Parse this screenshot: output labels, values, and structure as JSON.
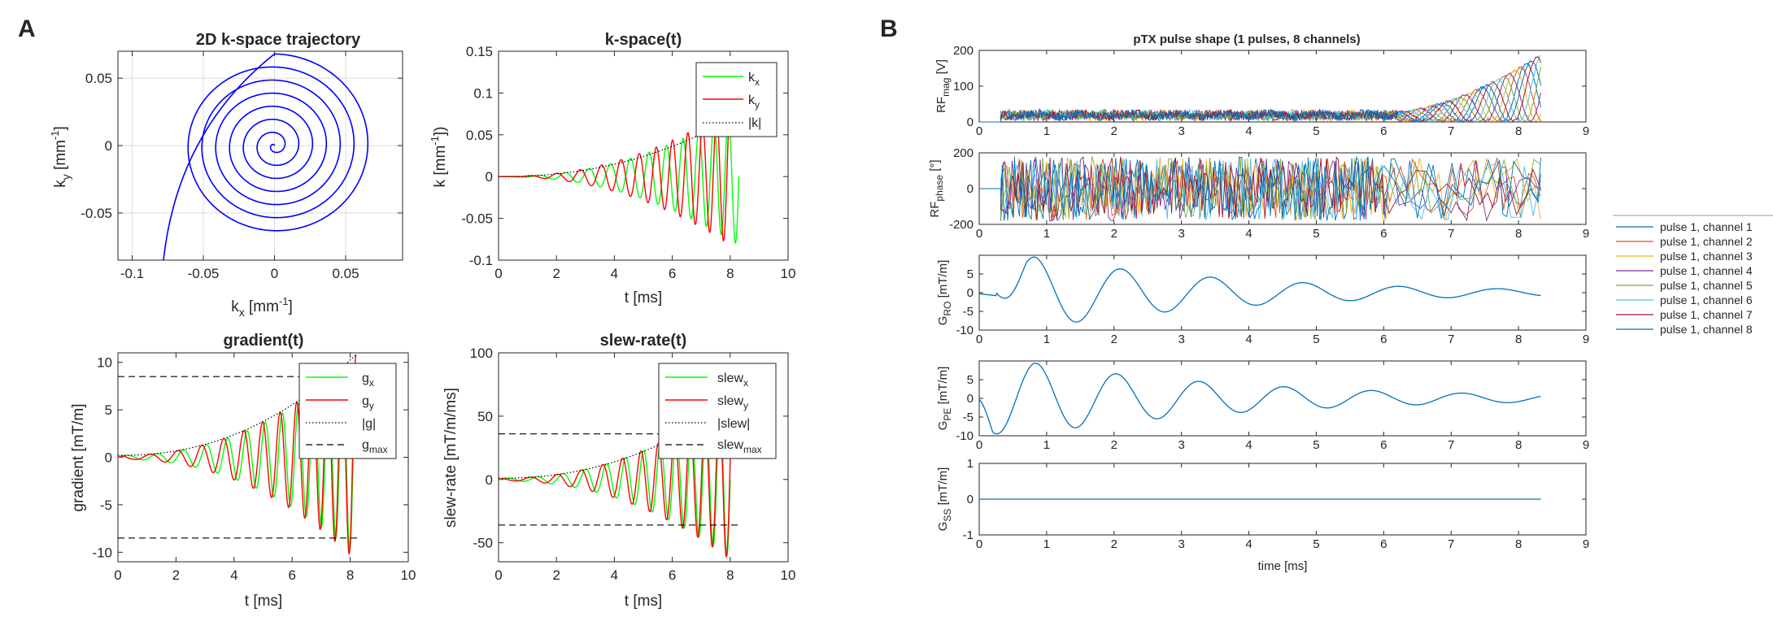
{
  "panel_letters": [
    "A",
    "B"
  ],
  "chart_data": [
    {
      "type": "line",
      "title": "2D k-space trajectory",
      "xlabel": "k_x [mm^-1]",
      "ylabel": "k_y [mm^-1]",
      "xlim": [
        -0.11,
        0.09
      ],
      "ylim": [
        -0.085,
        0.07
      ],
      "xticks": [
        "-0.1",
        "-0.05",
        "0",
        "0.05"
      ],
      "yticks": [
        "-0.05",
        "0",
        "0.05"
      ],
      "grid": true,
      "series": [
        {
          "color": "#0000ff",
          "shape": "spiral",
          "turns": 7,
          "rmax": 0.068,
          "outer_tail_to": [
            -0.078,
            -0.085
          ]
        }
      ]
    },
    {
      "type": "line",
      "title": "k-space(t)",
      "xlabel": "t [ms]",
      "ylabel": "k [mm^-1])",
      "xlim": [
        0,
        10
      ],
      "ylim": [
        -0.1,
        0.15
      ],
      "xticks": [
        "0",
        "2",
        "4",
        "6",
        "8",
        "10"
      ],
      "yticks": [
        "-0.1",
        "-0.05",
        "0",
        "0.05",
        "0.1",
        "0.15"
      ],
      "legend": {
        "placement": "top-right",
        "entries": [
          "k_x",
          "k_y",
          "|k|"
        ]
      },
      "series": [
        {
          "name": "k_x",
          "color": "#00ff00",
          "shape": "oscillation",
          "t_end": 8.3,
          "env_start": 0.0,
          "env_end": 0.082,
          "cycles": 12
        },
        {
          "name": "k_y",
          "color": "#ff0000",
          "shape": "oscillation",
          "t_end": 8.0,
          "env_start": 0.0,
          "env_end": 0.082,
          "cycles": 12,
          "phase": 90
        },
        {
          "name": "|k|",
          "color": "#000000",
          "dash": "dotted",
          "shape": "envelope",
          "t_end": 8.0,
          "v_start": 0.0,
          "v_end": 0.068
        }
      ]
    },
    {
      "type": "line",
      "title": "gradient(t)",
      "xlabel": "t [ms]",
      "ylabel": "gradient [mT/m]",
      "xlim": [
        0,
        10
      ],
      "ylim": [
        -11,
        11
      ],
      "xticks": [
        "0",
        "2",
        "4",
        "6",
        "8",
        "10"
      ],
      "yticks": [
        "-10",
        "-5",
        "0",
        "5",
        "10"
      ],
      "legend": {
        "placement": "top-right",
        "entries": [
          "g_x",
          "g_y",
          "|g|",
          "g_max"
        ]
      },
      "series": [
        {
          "name": "g_x",
          "color": "#00ff00",
          "shape": "oscillation",
          "t_end": 8.1,
          "env_start": 0.2,
          "env_end": 10.0,
          "cycles": 12
        },
        {
          "name": "g_y",
          "color": "#ff0000",
          "shape": "oscillation",
          "t_end": 8.2,
          "env_start": 0.2,
          "env_end": 10.8,
          "cycles": 12,
          "phase": 90
        },
        {
          "name": "|g|",
          "color": "#000000",
          "dash": "dotted",
          "shape": "envelope",
          "t_end": 8.2,
          "v_start": 0.2,
          "v_end": 10.8
        },
        {
          "name": "g_max",
          "color": "#000000",
          "dash": "dashed",
          "shape": "hlines",
          "values": [
            8.5,
            -8.5
          ],
          "t_end": 8.3
        }
      ]
    },
    {
      "type": "line",
      "title": "slew-rate(t)",
      "xlabel": "t [ms]",
      "ylabel": "slew-rate [mT/m/ms]",
      "xlim": [
        0,
        10
      ],
      "ylim": [
        -65,
        100
      ],
      "xticks": [
        "0",
        "2",
        "4",
        "6",
        "8",
        "10"
      ],
      "yticks": [
        "-50",
        "0",
        "50",
        "100"
      ],
      "legend": {
        "placement": "top-right",
        "entries": [
          "slew_x",
          "slew_y",
          "|slew|",
          "slew_max"
        ]
      },
      "series": [
        {
          "name": "slew_x",
          "color": "#00ff00",
          "shape": "oscillation",
          "t_end": 8.0,
          "env_start": 1.0,
          "env_end": 62.0,
          "cycles": 12
        },
        {
          "name": "slew_y",
          "color": "#ff0000",
          "shape": "oscillation",
          "t_end": 8.1,
          "env_start": 1.0,
          "env_end": 65.0,
          "cycles": 12,
          "phase": 90
        },
        {
          "name": "|slew|",
          "color": "#000000",
          "dash": "dotted",
          "shape": "envelope",
          "t_end": 8.1,
          "v_start": 1.0,
          "v_end": 62.0
        },
        {
          "name": "slew_max",
          "color": "#000000",
          "dash": "dashed",
          "shape": "hlines",
          "values": [
            36,
            -36
          ],
          "t_end": 8.3
        }
      ]
    },
    {
      "type": "line",
      "title": "pTX pulse shape (1 pulses, 8 channels)",
      "xlabel": "",
      "ylabel": "RF_mag [V]",
      "xlim": [
        0,
        9
      ],
      "ylim": [
        0,
        200
      ],
      "xticks": [
        "0",
        "1",
        "2",
        "3",
        "4",
        "5",
        "6",
        "7",
        "8",
        "9"
      ],
      "yticks": [
        "0",
        "100",
        "200"
      ],
      "series_note": "8 channels, noisy low amplitude then oscillating peaks up to ~190 near t=7.5-8.3",
      "t_start": 0.32,
      "t_end": 8.33
    },
    {
      "type": "line",
      "xlabel": "",
      "ylabel": "RF_phase [°]",
      "xlim": [
        0,
        9
      ],
      "ylim": [
        -200,
        200
      ],
      "xticks": [
        "0",
        "1",
        "2",
        "3",
        "4",
        "5",
        "6",
        "7",
        "8",
        "9"
      ],
      "yticks": [
        "-200",
        "0",
        "200"
      ],
      "t_start": 0.32,
      "t_end": 8.33
    },
    {
      "type": "line",
      "xlabel": "",
      "ylabel": "G_RO [mT/m]",
      "xlim": [
        0,
        9
      ],
      "ylim": [
        -10,
        10
      ],
      "xticks": [
        "0",
        "1",
        "2",
        "3",
        "4",
        "5",
        "6",
        "7",
        "8",
        "9"
      ],
      "yticks": [
        "-10",
        "-5",
        "0",
        "5"
      ],
      "series": [
        {
          "color": "#0072bd",
          "shape": "damped_cosine",
          "t_end": 8.33,
          "peak_t": 1.0,
          "amplitude": 9.5,
          "period": 0.98
        }
      ]
    },
    {
      "type": "line",
      "xlabel": "",
      "ylabel": "G_PE [mT/m]",
      "xlim": [
        0,
        9
      ],
      "ylim": [
        -10,
        10
      ],
      "xticks": [
        "0",
        "1",
        "2",
        "3",
        "4",
        "5",
        "6",
        "7",
        "8",
        "9"
      ],
      "yticks": [
        "-10",
        "-5",
        "0",
        "5"
      ],
      "series": [
        {
          "color": "#0072bd",
          "shape": "damped_sine",
          "t_end": 8.33,
          "amplitude": 9.5,
          "period": 0.98
        }
      ]
    },
    {
      "type": "line",
      "xlabel": "time [ms]",
      "ylabel": "G_SS [mT/m]",
      "xlim": [
        0,
        9
      ],
      "ylim": [
        -1,
        1
      ],
      "xticks": [
        "0",
        "1",
        "2",
        "3",
        "4",
        "5",
        "6",
        "7",
        "8",
        "9"
      ],
      "yticks": [
        "-1",
        "0",
        "1"
      ],
      "series": [
        {
          "color": "#0072bd",
          "shape": "constant",
          "value": 0,
          "t_end": 8.33
        }
      ]
    }
  ],
  "channel_legend": {
    "placement": "right",
    "entries": [
      {
        "label": "pulse 1, channel 1",
        "color": "#0072bd"
      },
      {
        "label": "pulse 1, channel 2",
        "color": "#d95319"
      },
      {
        "label": "pulse 1, channel 3",
        "color": "#edb120"
      },
      {
        "label": "pulse 1, channel 4",
        "color": "#7e2f8e"
      },
      {
        "label": "pulse 1, channel 5",
        "color": "#77ac30"
      },
      {
        "label": "pulse 1, channel 6",
        "color": "#4dbeee"
      },
      {
        "label": "pulse 1, channel 7",
        "color": "#a2142f"
      },
      {
        "label": "pulse 1, channel 8",
        "color": "#0072bd"
      }
    ]
  }
}
